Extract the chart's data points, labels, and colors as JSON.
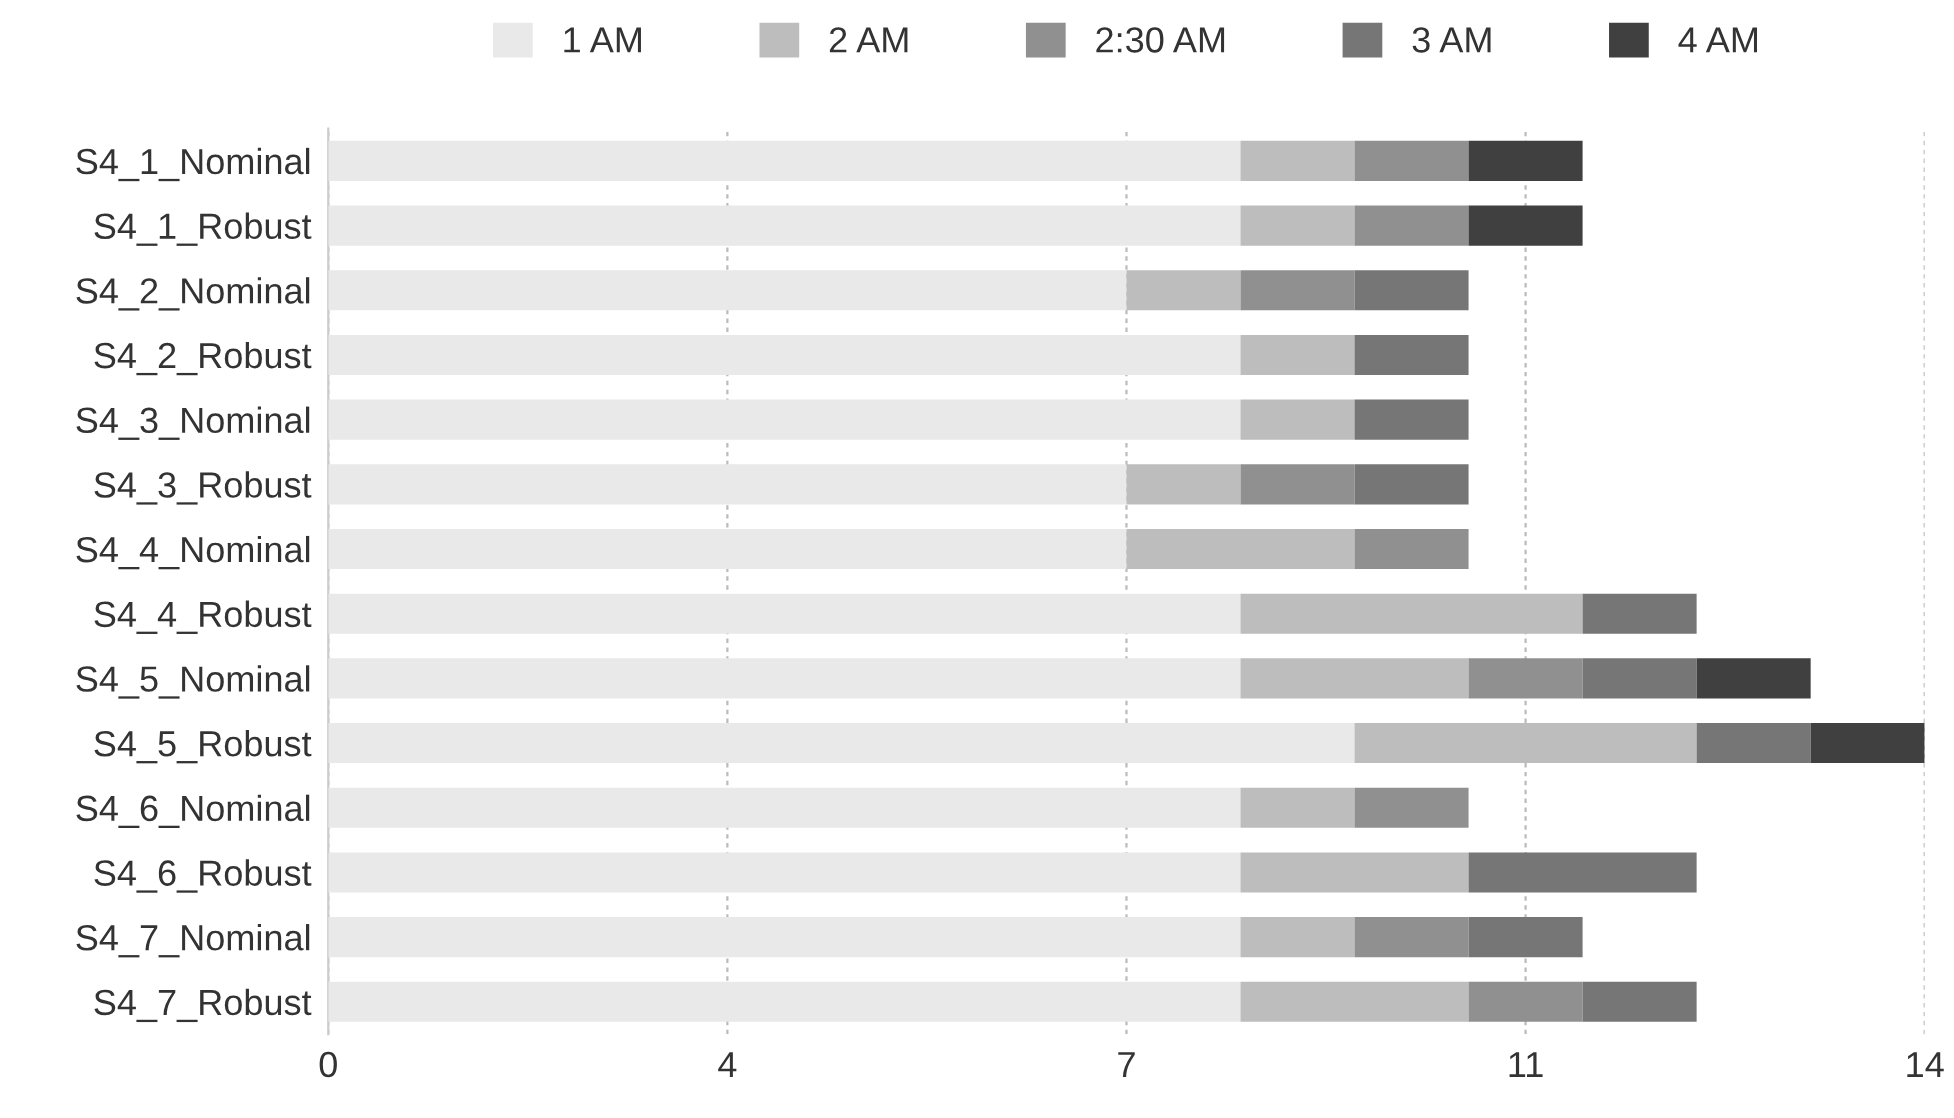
{
  "chart_data": {
    "type": "bar",
    "orientation": "horizontal",
    "stacked": true,
    "categories": [
      "S4_1_Nominal",
      "S4_1_Robust",
      "S4_2_Nominal",
      "S4_2_Robust",
      "S4_3_Nominal",
      "S4_3_Robust",
      "S4_4_Nominal",
      "S4_4_Robust",
      "S4_5_Nominal",
      "S4_5_Robust",
      "S4_6_Nominal",
      "S4_6_Robust",
      "S4_7_Nominal",
      "S4_7_Robust"
    ],
    "series": [
      {
        "name": "1 AM",
        "color": "#e9e9e9",
        "values": [
          8,
          8,
          7,
          8,
          8,
          7,
          7,
          8,
          8,
          9,
          8,
          8,
          8,
          8
        ]
      },
      {
        "name": "2 AM",
        "color": "#bdbdbd",
        "values": [
          1,
          1,
          1,
          1,
          1,
          1,
          2,
          3,
          2,
          3,
          1,
          2,
          1,
          2
        ]
      },
      {
        "name": "2:30 AM",
        "color": "#909090",
        "values": [
          1,
          1,
          1,
          0,
          0,
          1,
          1,
          0,
          1,
          0,
          1,
          0,
          1,
          1
        ]
      },
      {
        "name": "3 AM",
        "color": "#767676",
        "values": [
          0,
          0,
          1,
          1,
          1,
          1,
          0,
          1,
          1,
          1,
          0,
          2,
          1,
          1
        ]
      },
      {
        "name": "4 AM",
        "color": "#404040",
        "values": [
          1,
          1,
          0,
          0,
          0,
          0,
          0,
          0,
          1,
          1,
          0,
          0,
          0,
          0
        ]
      }
    ],
    "xlim": [
      0,
      14
    ],
    "xticks": [
      0,
      {
        "value": 3.5,
        "label": "4"
      },
      7,
      {
        "value": 10.5,
        "label": "11"
      },
      14
    ],
    "grid": "x",
    "legend": "top"
  }
}
